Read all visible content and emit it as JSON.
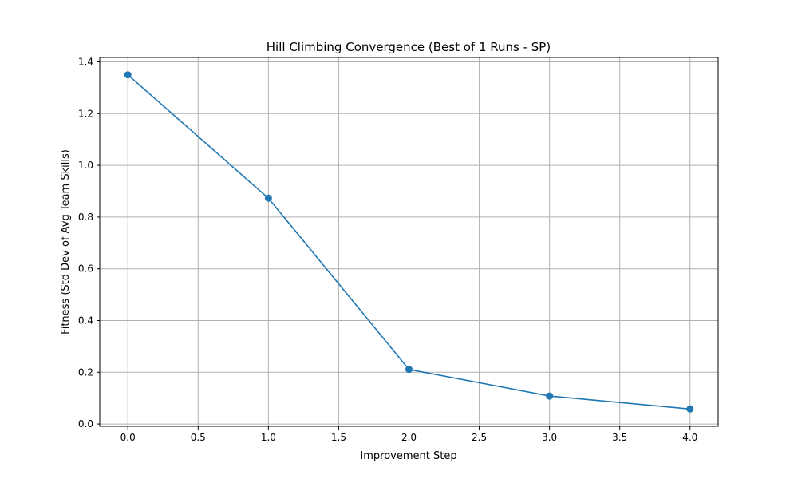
{
  "chart_data": {
    "type": "line",
    "title": "Hill Climbing Convergence (Best of 1 Runs - SP)",
    "xlabel": "Improvement Step",
    "ylabel": "Fitness (Std Dev of Avg Team Skills)",
    "x": [
      0,
      1,
      2,
      3,
      4
    ],
    "series": [
      {
        "values": [
          1.35,
          0.873,
          0.211,
          0.108,
          0.058
        ],
        "color": "#1f77b4",
        "marker": "circle"
      }
    ],
    "xlim": [
      -0.2,
      4.2
    ],
    "ylim": [
      -0.009,
      1.417
    ],
    "xticks": [
      0.0,
      0.5,
      1.0,
      1.5,
      2.0,
      2.5,
      3.0,
      3.5,
      4.0
    ],
    "xtick_labels": [
      "0.0",
      "0.5",
      "1.0",
      "1.5",
      "2.0",
      "2.5",
      "3.0",
      "3.5",
      "4.0"
    ],
    "yticks": [
      0.0,
      0.2,
      0.4,
      0.6,
      0.8,
      1.0,
      1.2,
      1.4
    ],
    "ytick_labels": [
      "0.0",
      "0.2",
      "0.4",
      "0.6",
      "0.8",
      "1.0",
      "1.2",
      "1.4"
    ],
    "grid": true,
    "grid_color": "#b0b0b0"
  }
}
